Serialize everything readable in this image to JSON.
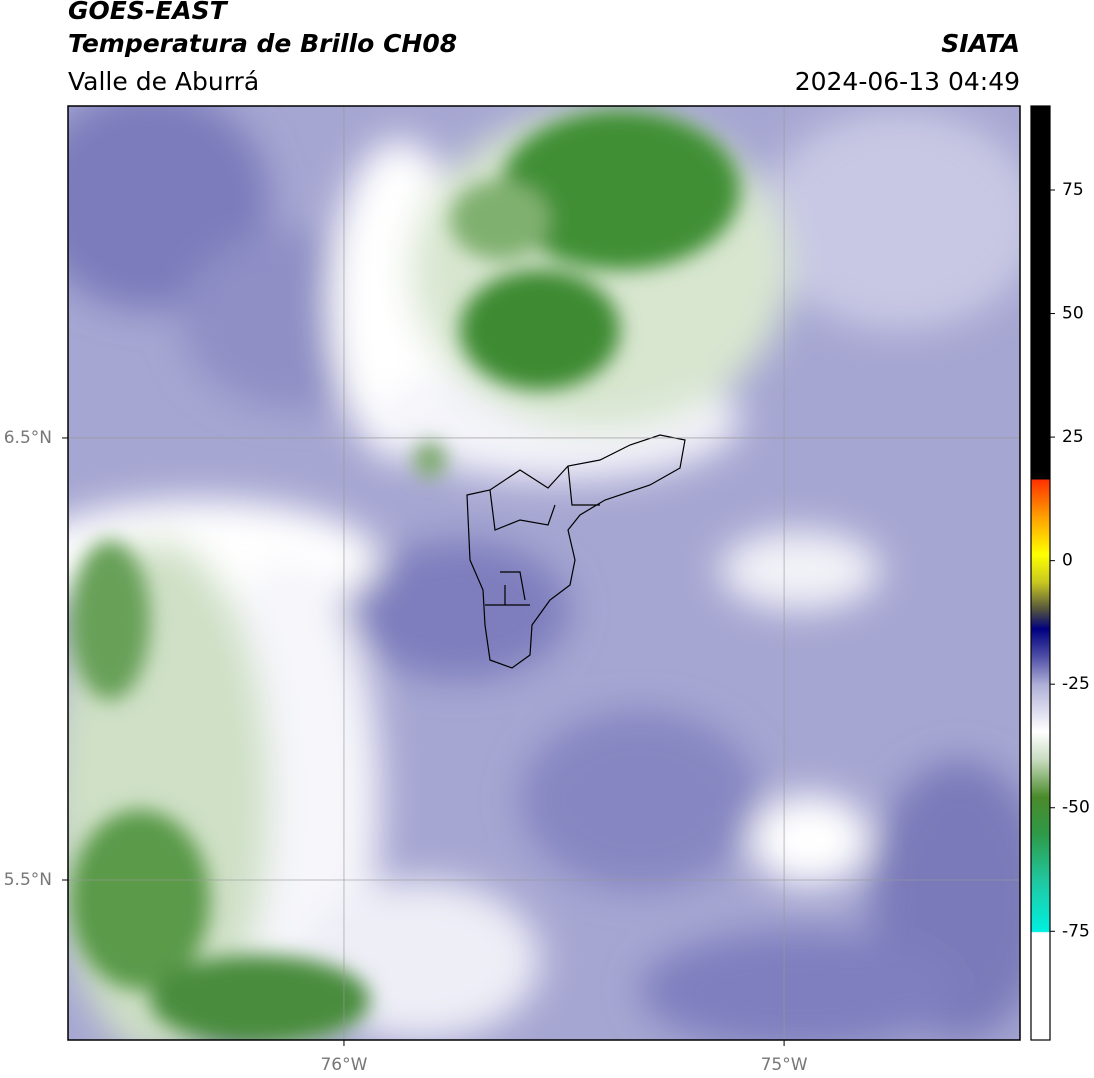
{
  "header": {
    "title": "GOES-EAST",
    "subtitle": "Temperatura de Brillo CH08",
    "region": "Valle de Aburrá",
    "source": "SIATA",
    "timestamp": "2024-06-13 04:49"
  },
  "map": {
    "xlim": [
      -76.627,
      -74.464
    ],
    "ylim": [
      5.138,
      7.251
    ],
    "xticks": [
      {
        "value": -76,
        "label": "76°W"
      },
      {
        "value": -75,
        "label": "75°W"
      }
    ],
    "yticks": [
      {
        "value": 6.5,
        "label": "6.5°N"
      },
      {
        "value": 5.5,
        "label": "5.5°N"
      }
    ],
    "grid": true
  },
  "colorbar": {
    "lim": [
      -97,
      92
    ],
    "ticks": [
      75,
      50,
      25,
      0,
      -25,
      -50,
      -75
    ]
  }
}
